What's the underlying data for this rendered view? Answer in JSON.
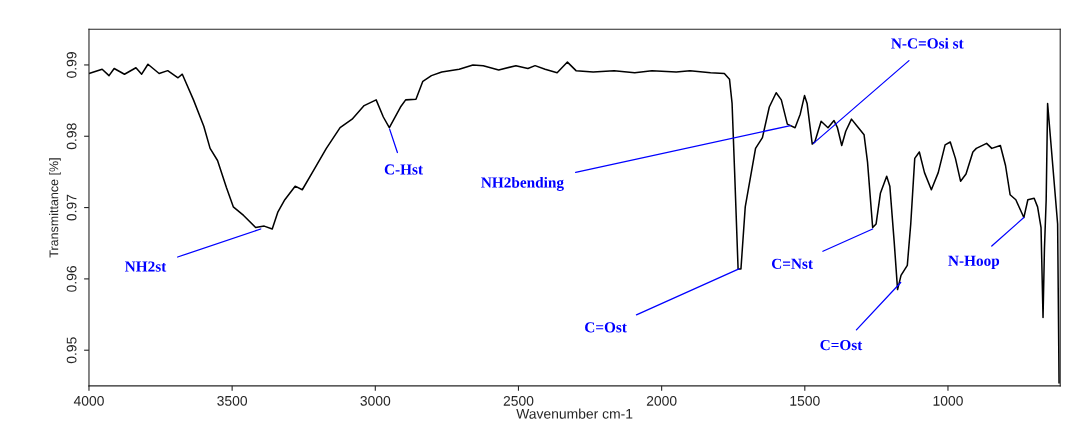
{
  "chart_data": {
    "type": "line",
    "xlabel": "Wavenumber cm-1",
    "ylabel": "Transmittance [%]",
    "xlim": [
      4000,
      608
    ],
    "ylim": [
      0.945,
      0.995
    ],
    "xticks": [
      4000,
      3500,
      3000,
      2500,
      2000,
      1500,
      1000
    ],
    "yticks": [
      0.95,
      0.96,
      0.97,
      0.98,
      0.99
    ],
    "series": [
      {
        "color": "#000000",
        "x": [
          4000,
          3954,
          3930,
          3912,
          3876,
          3836,
          3816,
          3794,
          3755,
          3725,
          3689,
          3674,
          3635,
          3599,
          3577,
          3551,
          3520,
          3496,
          3460,
          3418,
          3388,
          3360,
          3340,
          3316,
          3280,
          3255,
          3213,
          3171,
          3123,
          3081,
          3039,
          2997,
          2972,
          2951,
          2912,
          2894,
          2858,
          2834,
          2804,
          2768,
          2707,
          2659,
          2623,
          2569,
          2509,
          2467,
          2442,
          2407,
          2365,
          2329,
          2299,
          2239,
          2166,
          2094,
          2034,
          1949,
          1901,
          1829,
          1781,
          1763,
          1754,
          1745,
          1733,
          1723,
          1708,
          1672,
          1648,
          1624,
          1600,
          1582,
          1561,
          1534,
          1516,
          1501,
          1492,
          1474,
          1465,
          1443,
          1419,
          1398,
          1386,
          1371,
          1357,
          1337,
          1317,
          1293,
          1281,
          1263,
          1251,
          1236,
          1214,
          1203,
          1188,
          1176,
          1164,
          1142,
          1130,
          1116,
          1100,
          1082,
          1058,
          1034,
          1010,
          992,
          974,
          956,
          937,
          913,
          901,
          865,
          847,
          817,
          799,
          783,
          763,
          735,
          721,
          699,
          687,
          675,
          668,
          663,
          657,
          652,
          649,
          626,
          617,
          612
        ],
        "values": [
          0.9888,
          0.9894,
          0.9885,
          0.9895,
          0.9887,
          0.9896,
          0.9887,
          0.9901,
          0.9888,
          0.9892,
          0.9882,
          0.9887,
          0.9851,
          0.9814,
          0.9783,
          0.9766,
          0.9728,
          0.9701,
          0.9689,
          0.9672,
          0.9674,
          0.967,
          0.9694,
          0.9711,
          0.973,
          0.9725,
          0.9754,
          0.9783,
          0.9812,
          0.9824,
          0.9843,
          0.9851,
          0.9827,
          0.9812,
          0.9841,
          0.9851,
          0.9852,
          0.9877,
          0.9885,
          0.989,
          0.9894,
          0.99,
          0.9899,
          0.9893,
          0.9899,
          0.9895,
          0.9899,
          0.9894,
          0.9889,
          0.9904,
          0.9892,
          0.989,
          0.9892,
          0.9889,
          0.9892,
          0.989,
          0.9892,
          0.9889,
          0.9888,
          0.988,
          0.9846,
          0.9749,
          0.9614,
          0.9614,
          0.9701,
          0.9783,
          0.9798,
          0.9841,
          0.9861,
          0.9851,
          0.9817,
          0.9812,
          0.9831,
          0.9857,
          0.9846,
          0.9789,
          0.9792,
          0.9821,
          0.9812,
          0.9822,
          0.9812,
          0.9787,
          0.9807,
          0.9824,
          0.9814,
          0.9802,
          0.9764,
          0.9672,
          0.9677,
          0.972,
          0.9744,
          0.973,
          0.9653,
          0.9585,
          0.9605,
          0.9619,
          0.9677,
          0.9769,
          0.9778,
          0.9749,
          0.9725,
          0.9749,
          0.9788,
          0.9792,
          0.9769,
          0.9737,
          0.9747,
          0.9778,
          0.9783,
          0.979,
          0.9783,
          0.9787,
          0.9759,
          0.9718,
          0.9711,
          0.9686,
          0.9711,
          0.9713,
          0.9701,
          0.9672,
          0.9546,
          0.9643,
          0.9711,
          0.9846,
          null,
          null,
          0.9677,
          0.9454
        ]
      }
    ],
    "annotations": [
      {
        "text": "NH2st",
        "x": 3400,
        "y": 0.967
      },
      {
        "text": "C-Hst",
        "x": 2950,
        "y": 0.981
      },
      {
        "text": "NH2bending",
        "x": 1550,
        "y": 0.9815
      },
      {
        "text": "N-C=Osi st",
        "x": 1470,
        "y": 0.979
      },
      {
        "text": "C=Ost",
        "x": 1730,
        "y": 0.9614
      },
      {
        "text": "C=Nst",
        "x": 1263,
        "y": 0.967
      },
      {
        "text": "C=Ost",
        "x": 1165,
        "y": 0.9595
      },
      {
        "text": "N-Hoop",
        "x": 735,
        "y": 0.9686
      }
    ]
  }
}
